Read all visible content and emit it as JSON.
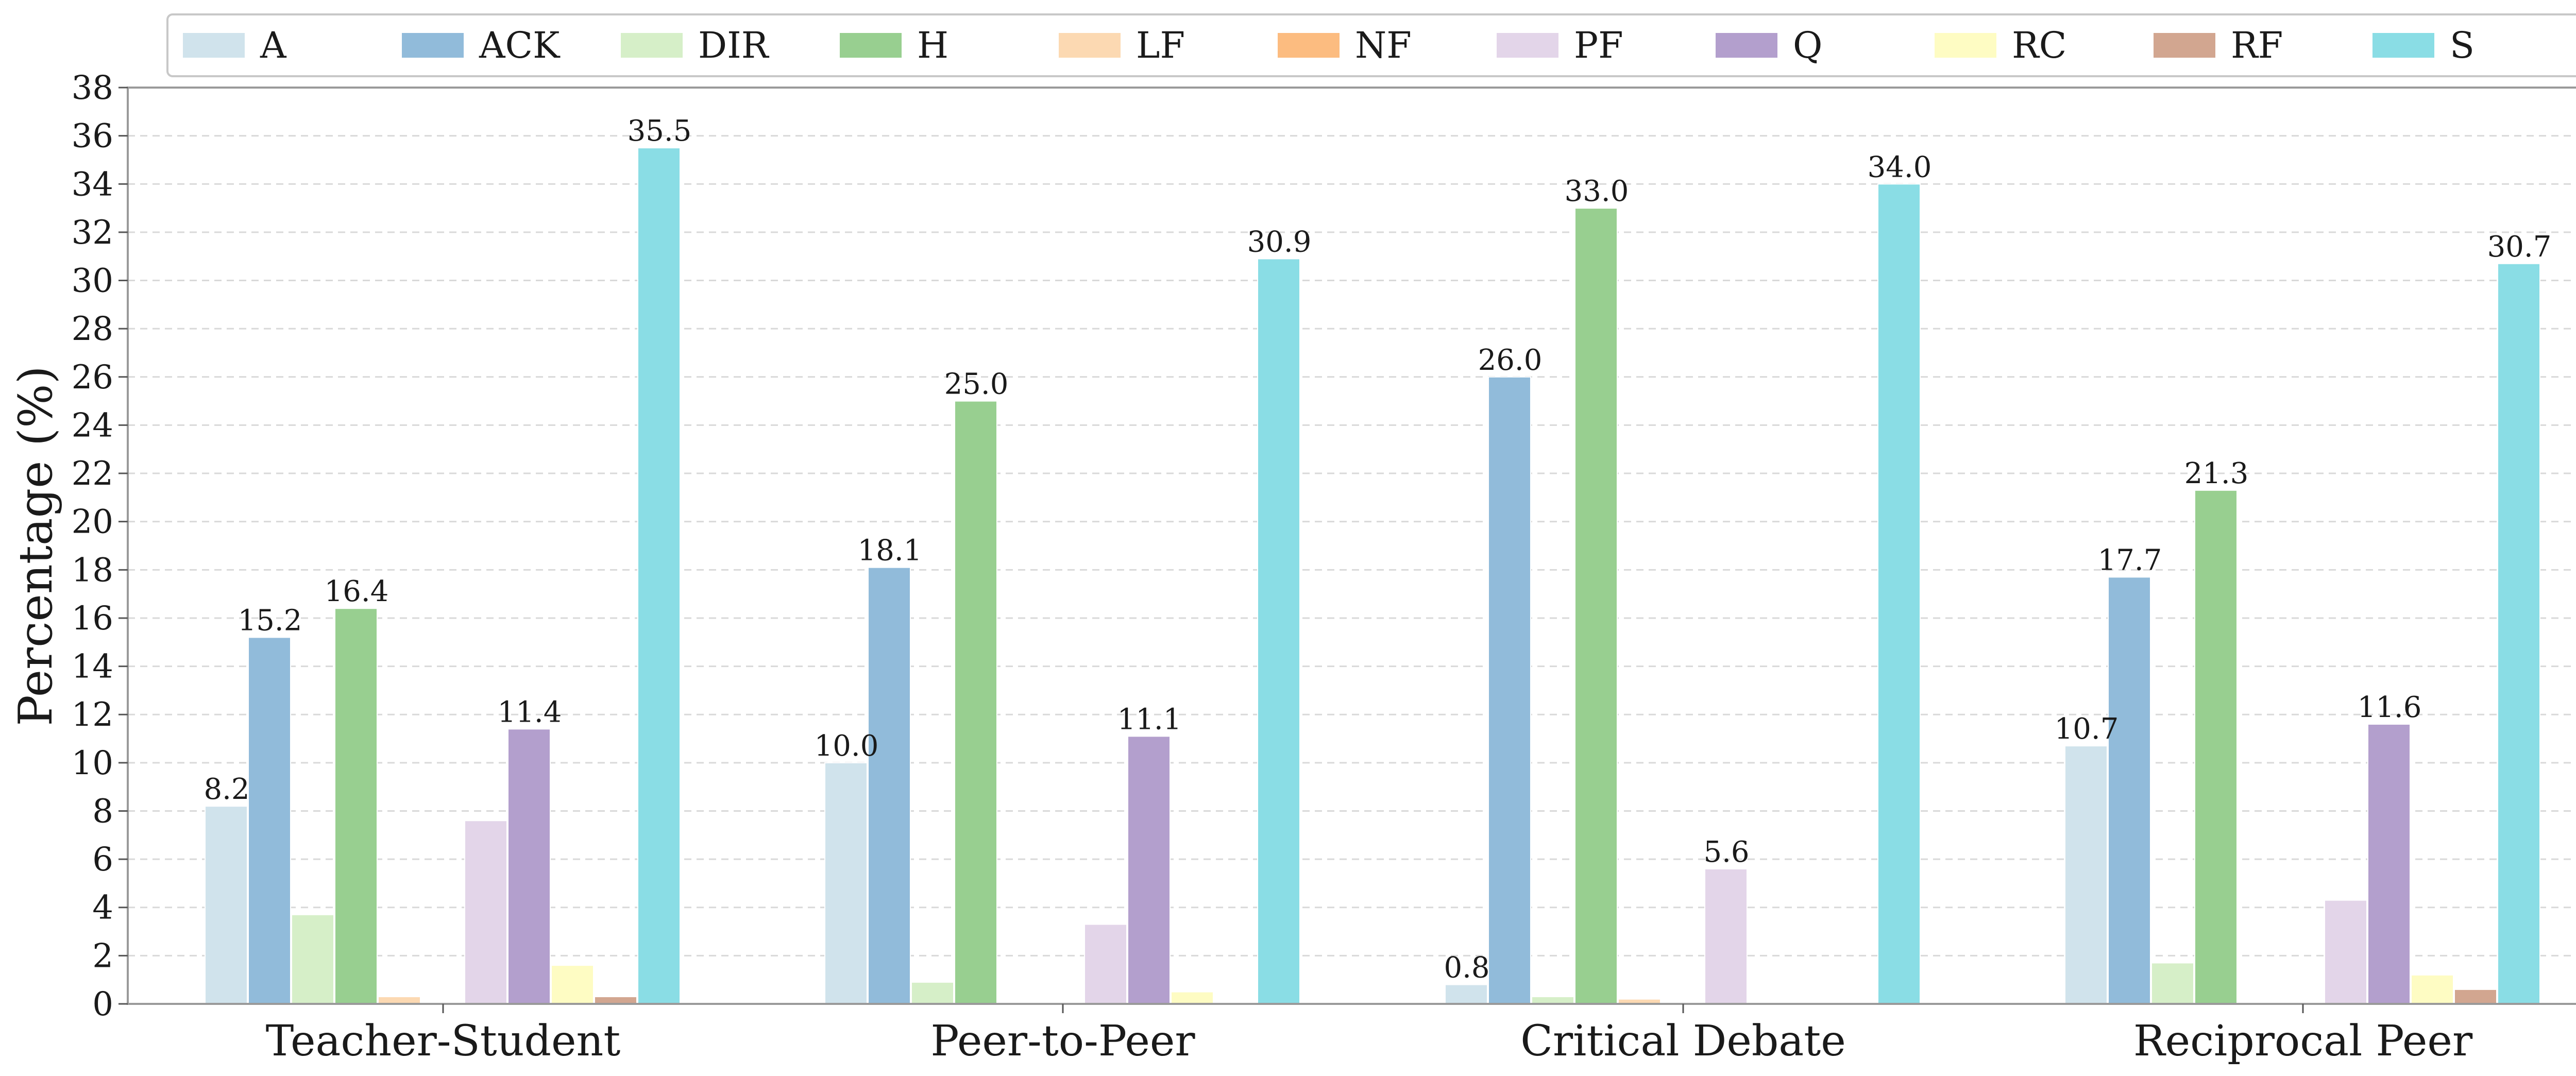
{
  "chart_data": {
    "type": "bar",
    "title": "",
    "xlabel": "",
    "ylabel": "Percentage (%)",
    "ylim": [
      0,
      38
    ],
    "ytick_step": 2,
    "grid": true,
    "legend_position": "top",
    "categories": [
      "Teacher-Student",
      "Peer-to-Peer",
      "Critical Debate",
      "Reciprocal Peer"
    ],
    "series": [
      {
        "name": "A",
        "color": "#d0e3ec",
        "values": [
          8.2,
          10.0,
          0.8,
          10.7
        ]
      },
      {
        "name": "ACK",
        "color": "#91bbda",
        "values": [
          15.2,
          18.1,
          26.0,
          17.7
        ]
      },
      {
        "name": "DIR",
        "color": "#d6efc8",
        "values": [
          3.7,
          0.9,
          0.3,
          1.7
        ]
      },
      {
        "name": "H",
        "color": "#98cf90",
        "values": [
          16.4,
          25.0,
          33.0,
          21.3
        ]
      },
      {
        "name": "LF",
        "color": "#fcd9b2",
        "values": [
          0.3,
          0.0,
          0.2,
          0.0
        ]
      },
      {
        "name": "NF",
        "color": "#fcbc80",
        "values": [
          0.0,
          0.0,
          0.0,
          0.0
        ]
      },
      {
        "name": "PF",
        "color": "#e3d5e9",
        "values": [
          7.6,
          3.3,
          5.6,
          4.3
        ]
      },
      {
        "name": "Q",
        "color": "#b39fcd",
        "values": [
          11.4,
          11.1,
          0.0,
          11.6
        ]
      },
      {
        "name": "RC",
        "color": "#fefcc3",
        "values": [
          1.6,
          0.5,
          0.0,
          1.2
        ]
      },
      {
        "name": "RF",
        "color": "#d2a690",
        "values": [
          0.3,
          0.0,
          0.0,
          0.6
        ]
      },
      {
        "name": "S",
        "color": "#8adde5",
        "values": [
          35.5,
          30.9,
          34.0,
          30.7
        ]
      }
    ],
    "data_labels": [
      {
        "series": "A",
        "category": "Teacher-Student",
        "text": "8.2"
      },
      {
        "series": "ACK",
        "category": "Teacher-Student",
        "text": "15.2"
      },
      {
        "series": "H",
        "category": "Teacher-Student",
        "text": "16.4"
      },
      {
        "series": "Q",
        "category": "Teacher-Student",
        "text": "11.4"
      },
      {
        "series": "S",
        "category": "Teacher-Student",
        "text": "35.5"
      },
      {
        "series": "A",
        "category": "Peer-to-Peer",
        "text": "10.0"
      },
      {
        "series": "ACK",
        "category": "Peer-to-Peer",
        "text": "18.1"
      },
      {
        "series": "H",
        "category": "Peer-to-Peer",
        "text": "25.0"
      },
      {
        "series": "Q",
        "category": "Peer-to-Peer",
        "text": "11.1"
      },
      {
        "series": "S",
        "category": "Peer-to-Peer",
        "text": "30.9"
      },
      {
        "series": "A",
        "category": "Critical Debate",
        "text": "0.8"
      },
      {
        "series": "ACK",
        "category": "Critical Debate",
        "text": "26.0"
      },
      {
        "series": "H",
        "category": "Critical Debate",
        "text": "33.0"
      },
      {
        "series": "PF",
        "category": "Critical Debate",
        "text": "5.6"
      },
      {
        "series": "S",
        "category": "Critical Debate",
        "text": "34.0"
      },
      {
        "series": "A",
        "category": "Reciprocal Peer",
        "text": "10.7"
      },
      {
        "series": "ACK",
        "category": "Reciprocal Peer",
        "text": "17.7"
      },
      {
        "series": "H",
        "category": "Reciprocal Peer",
        "text": "21.3"
      },
      {
        "series": "Q",
        "category": "Reciprocal Peer",
        "text": "11.6"
      },
      {
        "series": "S",
        "category": "Reciprocal Peer",
        "text": "30.7"
      }
    ]
  }
}
